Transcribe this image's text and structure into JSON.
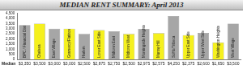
{
  "chart_data": {
    "type": "bar",
    "title": "MEDIAN RENT SUMMARY:  April 2013",
    "xlabel": "Median",
    "categories": [
      "BPC / Financial Dist",
      "Chelsea",
      "East Village",
      "Gramercy/Flatiron",
      "Harlem",
      "Lower East Side",
      "Midtown East",
      "Midtown West",
      "Morningside Heights",
      "Murray Hill",
      "SoHo/Tribeca",
      "Upper East Side",
      "Upper West Side",
      "Washington Heights",
      "West Village"
    ],
    "values": [
      3350,
      3500,
      3000,
      3000,
      2500,
      2875,
      2750,
      2500,
      2975,
      2575,
      4250,
      2375,
      2600,
      1650,
      3500
    ],
    "value_labels": [
      "$3,350",
      "$3,500",
      "$3,000",
      "$3,000",
      "$2,500",
      "$2,875",
      "$2,750",
      "$2,500",
      "$2,975",
      "$2,575",
      "$4,250",
      "$2,375",
      "$2,600",
      "$1,650",
      "$3,500"
    ],
    "colors": [
      "#a6a6a6",
      "#f5f01e",
      "#a6a6a6",
      "#f5f01e",
      "#a6a6a6",
      "#f5f01e",
      "#a6a6a6",
      "#f5f01e",
      "#a6a6a6",
      "#f5f01e",
      "#a6a6a6",
      "#f5f01e",
      "#a6a6a6",
      "#f5f01e",
      "#a6a6a6"
    ],
    "ylim": [
      0,
      4500
    ],
    "yticks": [
      0,
      500,
      {
        "value": 1000,
        "label": "1,000"
      },
      {
        "value": 1500,
        "label": "1,500"
      },
      {
        "value": 2000,
        "label": "2,000"
      },
      {
        "value": 2500,
        "label": "2,500"
      },
      {
        "value": 3000,
        "label": "3,000"
      },
      {
        "value": 3500,
        "label": "3,500"
      },
      {
        "value": 4000,
        "label": "4,000"
      },
      {
        "value": 4500,
        "label": "4,500"
      }
    ],
    "grid": false,
    "data_labels": true
  }
}
